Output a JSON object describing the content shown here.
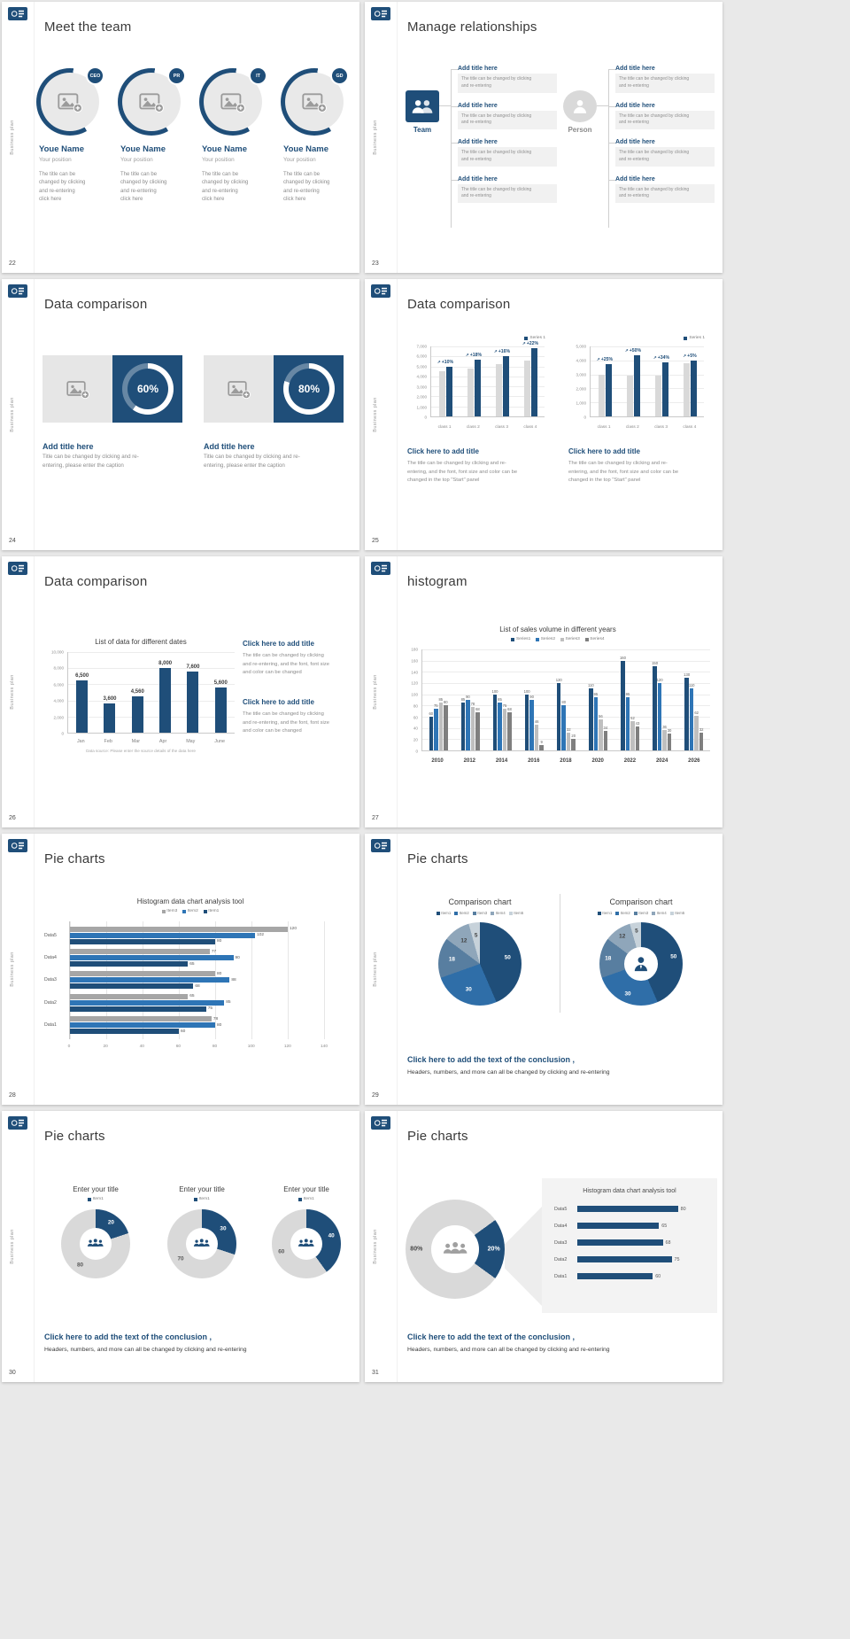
{
  "page": {
    "background": "#e9e9e9"
  },
  "theme": {
    "navy": "#1f4e79",
    "blue": "#2e75b6",
    "gray_light": "#d9d9d9",
    "gray_mid": "#a6a6a6",
    "gray_dark": "#7f7f7f"
  },
  "common": {
    "sidebar_text": "Business plan"
  },
  "slide22": {
    "number": "22",
    "title": "Meet the team",
    "members": [
      {
        "badge": "CEO",
        "name": "Youe Name",
        "position": "Your position",
        "desc": [
          "The title can be",
          "changed by clicking",
          "and re-entering",
          "click here"
        ]
      },
      {
        "badge": "PR",
        "name": "Youe Name",
        "position": "Your position",
        "desc": [
          "The title can be",
          "changed by clicking",
          "and re-entering",
          "click here"
        ]
      },
      {
        "badge": "IT",
        "name": "Youe Name",
        "position": "Your position",
        "desc": [
          "The title can be",
          "changed by clicking",
          "and re-entering",
          "click here"
        ]
      },
      {
        "badge": "GD",
        "name": "Youe Name",
        "position": "Your position",
        "desc": [
          "The title can be",
          "changed by clicking",
          "and re-entering",
          "click here"
        ]
      }
    ]
  },
  "slide23": {
    "number": "23",
    "title": "Manage relationships",
    "groups": [
      {
        "kind": "team",
        "label": "Team",
        "boxes": [
          {
            "title": "Add title here",
            "lines": [
              "The title can be changed by clicking",
              "and re-entering"
            ]
          },
          {
            "title": "Add title here",
            "lines": [
              "The title can be changed by clicking",
              "and re-entering"
            ]
          },
          {
            "title": "Add title here",
            "lines": [
              "The title can be changed by clicking",
              "and re-entering"
            ]
          },
          {
            "title": "Add title here",
            "lines": [
              "The title can be changed by clicking",
              "and re-entering"
            ]
          }
        ]
      },
      {
        "kind": "person",
        "label": "Person",
        "boxes": [
          {
            "title": "Add title here",
            "lines": [
              "The title can be changed by clicking",
              "and re-entering"
            ]
          },
          {
            "title": "Add title here",
            "lines": [
              "The title can be changed by clicking",
              "and re-entering"
            ]
          },
          {
            "title": "Add title here",
            "lines": [
              "The title can be changed by clicking",
              "and re-entering"
            ]
          },
          {
            "title": "Add title here",
            "lines": [
              "The title can be changed by clicking",
              "and re-entering"
            ]
          }
        ]
      }
    ]
  },
  "slide24": {
    "number": "24",
    "title": "Data comparison",
    "panels": [
      {
        "percent": 60,
        "percent_label": "60%",
        "title": "Add title here",
        "lines": [
          "Title can be changed by clicking and re-",
          "entering, please enter the caption"
        ]
      },
      {
        "percent": 80,
        "percent_label": "80%",
        "title": "Add title here",
        "lines": [
          "Title can be changed by clicking and re-",
          "entering, please enter the caption"
        ]
      }
    ]
  },
  "slide25": {
    "number": "25",
    "title": "Data comparison",
    "charts": [
      {
        "type": "bar",
        "legend": "Series 1",
        "ymax": 7000,
        "yticks": [
          "7,000",
          "6,000",
          "5,000",
          "4,000",
          "3,000",
          "2,000",
          "1,000",
          "0"
        ],
        "categories": [
          "class 1",
          "class 2",
          "class 3",
          "class 4"
        ],
        "series": [
          {
            "name": "base",
            "values": [
              4500,
              4800,
              5200,
              5600
            ]
          },
          {
            "name": "Series 1",
            "values": [
              4950,
              5660,
              6030,
              6830
            ]
          }
        ],
        "annotations": [
          "+10%",
          "+18%",
          "+16%",
          "+22%"
        ]
      },
      {
        "type": "bar",
        "legend": "Series 1",
        "ymax": 5000,
        "yticks": [
          "5,000",
          "4,000",
          "3,000",
          "2,000",
          "1,000",
          "0"
        ],
        "categories": [
          "class 1",
          "class 2",
          "class 3",
          "class 4"
        ],
        "series": [
          {
            "name": "base",
            "values": [
              3000,
              2900,
              2900,
              3800
            ]
          },
          {
            "name": "Series 1",
            "values": [
              3750,
              4350,
              3890,
              3990
            ]
          }
        ],
        "annotations": [
          "+25%",
          "+50%",
          "+34%",
          "+5%"
        ]
      }
    ],
    "blocks": [
      {
        "title": "Click here to add title",
        "lines": [
          "The title can be changed by clicking and re-",
          "entering, and the font, font size and color can be",
          "changed in the top \"Start\" panel"
        ]
      },
      {
        "title": "Click here to add title",
        "lines": [
          "The title can be changed by clicking and re-",
          "entering, and the font, font size and color can be",
          "changed in the top \"Start\" panel"
        ]
      }
    ]
  },
  "slide26": {
    "number": "26",
    "title": "Data comparison",
    "chart": {
      "type": "bar",
      "title": "List of data for different dates",
      "ymax": 10000,
      "yticks": [
        "10,000",
        "8,000",
        "6,000",
        "4,000",
        "2,000",
        "0"
      ],
      "categories": [
        "Jan",
        "Feb",
        "Mar",
        "Apr",
        "May",
        "June"
      ],
      "values": [
        6500,
        3600,
        4560,
        8000,
        7600,
        5600
      ],
      "value_labels": [
        "6,500",
        "3,600",
        "4,560",
        "8,000",
        "7,600",
        "5,600"
      ],
      "caption": "Data source: Please enter the source details of the data here"
    },
    "blocks": [
      {
        "title": "Click here to add title",
        "lines": [
          "The title can be changed by clicking",
          "and re-entering, and the font, font size",
          "and color can be changed"
        ]
      },
      {
        "title": "Click here to add title",
        "lines": [
          "The title can be changed by clicking",
          "and re-entering, and the font, font size",
          "and color can be changed"
        ]
      }
    ]
  },
  "slide27": {
    "number": "27",
    "title": "histogram",
    "chart": {
      "type": "bar",
      "title": "List of sales volume in different years",
      "ymax": 180,
      "yticks": [
        "180",
        "160",
        "140",
        "120",
        "100",
        "80",
        "60",
        "40",
        "20",
        "0"
      ],
      "categories": [
        "2010",
        "2012",
        "2014",
        "2016",
        "2018",
        "2020",
        "2022",
        "2024",
        "2026"
      ],
      "series": [
        {
          "name": "Series1",
          "color": "#1f4e79",
          "values": [
            60,
            85,
            100,
            100,
            120,
            110,
            160,
            150,
            130
          ]
        },
        {
          "name": "Series2",
          "color": "#2e75b6",
          "values": [
            75,
            90,
            85,
            90,
            80,
            95,
            95,
            120,
            110
          ]
        },
        {
          "name": "Series3",
          "color": "#bfbfbf",
          "values": [
            85,
            78,
            75,
            46,
            32,
            56,
            52,
            36,
            62
          ]
        },
        {
          "name": "Series4",
          "color": "#7f7f7f",
          "values": [
            80,
            68,
            68,
            9,
            20,
            34,
            43,
            30,
            32
          ]
        }
      ]
    }
  },
  "slide28": {
    "number": "28",
    "title": "Pie charts",
    "chart": {
      "type": "bar-horizontal",
      "title": "Histogram data chart analysis tool",
      "xmax": 140,
      "xticks": [
        "0",
        "20",
        "40",
        "60",
        "80",
        "100",
        "120",
        "140"
      ],
      "categories": [
        "Data5",
        "Data4",
        "Data3",
        "Data2",
        "Data1"
      ],
      "series": [
        {
          "name": "Item3",
          "color": "#a6a6a6",
          "values": [
            120,
            77,
            80,
            65,
            78
          ]
        },
        {
          "name": "Item2",
          "color": "#2e75b6",
          "values": [
            102,
            90,
            88,
            85,
            80
          ]
        },
        {
          "name": "Item1",
          "color": "#1f4e79",
          "values": [
            80,
            65,
            68,
            75,
            60
          ]
        }
      ]
    }
  },
  "slide29": {
    "number": "29",
    "title": "Pie charts",
    "charts": [
      {
        "type": "pie",
        "title": "Comparison chart",
        "legend": [
          "Item1",
          "Item2",
          "Item3",
          "Item4",
          "Item5"
        ],
        "values": [
          50,
          30,
          18,
          12,
          5
        ],
        "labels": [
          "50",
          "30",
          "18",
          "12",
          "5"
        ],
        "colors": [
          "#1f4e79",
          "#2f6ea8",
          "#587ea0",
          "#8fa6ba",
          "#c7d2da"
        ],
        "label_colors": [
          "#ffffff",
          "#ffffff",
          "#ffffff",
          "#3f3f3f",
          "#3f3f3f"
        ],
        "label_r": 0.68
      },
      {
        "type": "donut",
        "title": "Comparison chart",
        "legend": [
          "Item1",
          "Item2",
          "Item3",
          "Item4",
          "Item5"
        ],
        "values": [
          50,
          30,
          18,
          12,
          5
        ],
        "labels": [
          "50",
          "30",
          "18",
          "12",
          "5"
        ],
        "colors": [
          "#1f4e79",
          "#2f6ea8",
          "#587ea0",
          "#8fa6ba",
          "#c7d2da"
        ],
        "label_colors": [
          "#ffffff",
          "#ffffff",
          "#ffffff",
          "#3f3f3f",
          "#3f3f3f"
        ],
        "hole": "30%",
        "label_r": 0.8,
        "center_icon": "businessman"
      }
    ],
    "conclusion_title": "Click here to add the text of the conclusion ,",
    "conclusion_text": "Headers, numbers, and more can all be changed by clicking and re-entering"
  },
  "slide30": {
    "number": "30",
    "title": "Pie charts",
    "charts": [
      {
        "type": "donut",
        "title": "Enter your title",
        "legend": [
          "Item1"
        ],
        "values": [
          20,
          80
        ],
        "labels": [
          "20",
          "80"
        ],
        "colors": [
          "#1f4e79",
          "#d9d9d9"
        ],
        "label_colors": [
          "#ffffff",
          "#595959"
        ],
        "hole": "27%",
        "label_r": 0.76,
        "center_icon": "people-navy"
      },
      {
        "type": "donut",
        "title": "Enter your title",
        "legend": [
          "Item1"
        ],
        "values": [
          30,
          70
        ],
        "labels": [
          "30",
          "70"
        ],
        "colors": [
          "#1f4e79",
          "#d9d9d9"
        ],
        "label_colors": [
          "#ffffff",
          "#595959"
        ],
        "hole": "27%",
        "label_r": 0.76,
        "center_icon": "people-navy"
      },
      {
        "type": "donut",
        "title": "Enter your title",
        "legend": [
          "Item1"
        ],
        "values": [
          40,
          60
        ],
        "labels": [
          "40",
          "60"
        ],
        "colors": [
          "#1f4e79",
          "#d9d9d9"
        ],
        "label_colors": [
          "#ffffff",
          "#595959"
        ],
        "hole": "27%",
        "label_r": 0.76,
        "center_icon": "people-navy"
      }
    ],
    "conclusion_title": "Click here to add the text of the conclusion ,",
    "conclusion_text": "Headers, numbers, and more can all be changed by clicking and re-entering"
  },
  "slide31": {
    "number": "31",
    "title": "Pie charts",
    "donut": {
      "type": "donut",
      "values": [
        20,
        80
      ],
      "labels": [
        "20%",
        "80%"
      ],
      "colors": [
        "#1f4e79",
        "#d9d9d9"
      ],
      "label_colors": [
        "#ffffff",
        "#474747"
      ],
      "from": 54,
      "hole": "26%",
      "label_r": 0.78,
      "center_icon": "people-gray"
    },
    "panel": {
      "type": "bar-horizontal",
      "title": "Histogram data chart analysis tool",
      "xmax": 100,
      "categories": [
        "Data5",
        "Data4",
        "Data3",
        "Data2",
        "Data1"
      ],
      "values": [
        80,
        65,
        68,
        75,
        60
      ]
    },
    "conclusion_title": "Click here to add the text of the conclusion ,",
    "conclusion_text": "Headers, numbers, and more can all be changed by clicking and re-entering"
  }
}
